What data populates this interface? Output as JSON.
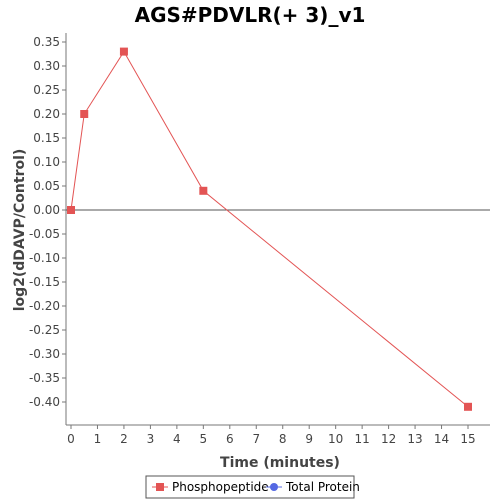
{
  "chart_data": {
    "type": "line",
    "title": "AGS#PDVLR(+ 3)_v1",
    "xlabel": "Time (minutes)",
    "ylabel": "log2(dDAVP/Control)",
    "xlim": [
      0,
      15.7
    ],
    "ylim": [
      -0.45,
      0.36
    ],
    "x_ticks": [
      0,
      1,
      2,
      3,
      4,
      5,
      6,
      7,
      8,
      9,
      10,
      11,
      12,
      13,
      14,
      15
    ],
    "x_tick_labels": [
      "0",
      "1",
      "2",
      "3",
      "4",
      "5",
      "6",
      "7",
      "8",
      "9",
      "10",
      "11",
      "12",
      "13",
      "14",
      "15"
    ],
    "y_ticks": [
      0.35,
      0.3,
      0.25,
      0.2,
      0.15,
      0.1,
      0.05,
      0.0,
      -0.05,
      -0.1,
      -0.15,
      -0.2,
      -0.25,
      -0.3,
      -0.35,
      -0.4
    ],
    "y_tick_labels": [
      "0.35",
      "0.30",
      "0.25",
      "0.20",
      "0.15",
      "0.10",
      "0.05",
      "0.00",
      "-0.05",
      "-0.10",
      "-0.15",
      "-0.20",
      "-0.25",
      "-0.30",
      "-0.35",
      "-0.40"
    ],
    "zero_line": true,
    "grid": false,
    "legend_position": "bottom-center",
    "series": [
      {
        "name": "Phosphopeptide",
        "color": "#e35454",
        "marker": "square",
        "x": [
          0,
          0.5,
          2,
          5,
          15
        ],
        "y": [
          0.0,
          0.2,
          0.33,
          0.04,
          -0.41
        ]
      },
      {
        "name": "Total Protein",
        "color": "#5468e3",
        "marker": "circle",
        "x": [],
        "y": []
      }
    ]
  }
}
